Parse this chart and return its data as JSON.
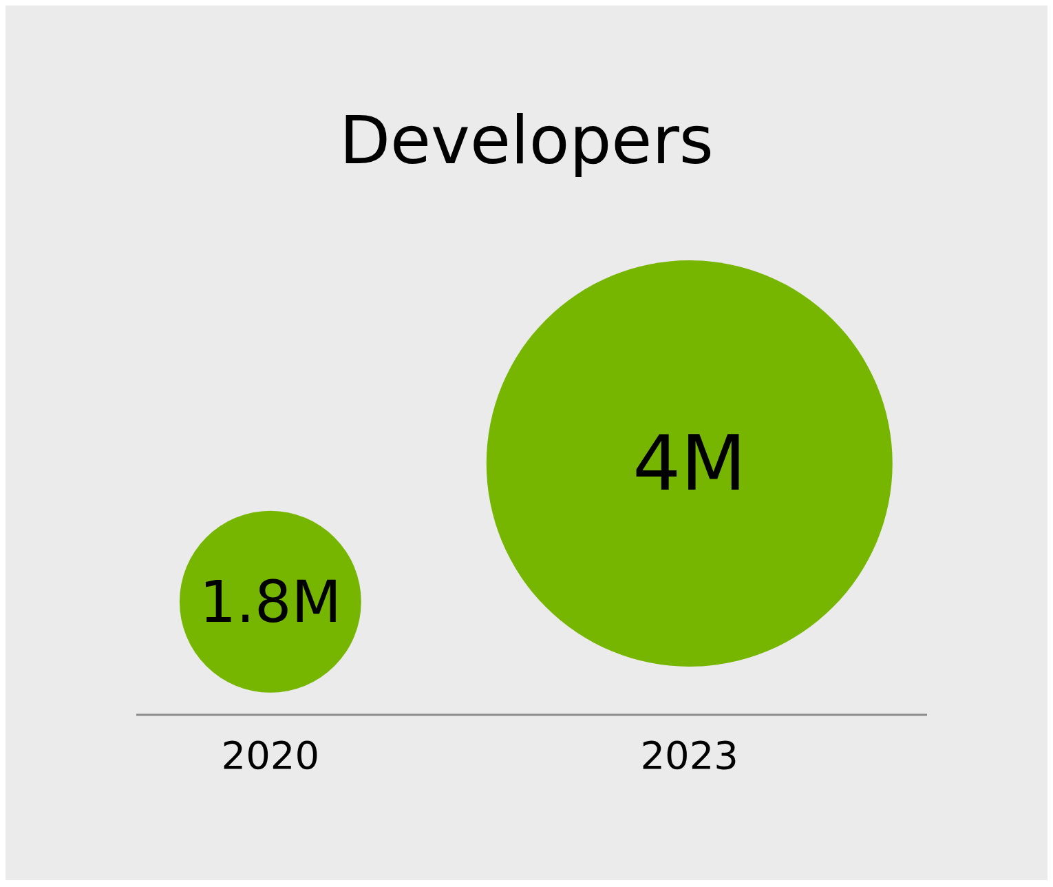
{
  "chart_data": {
    "type": "bubble",
    "title": "Developers",
    "categories": [
      "2020",
      "2023"
    ],
    "values": [
      1.8,
      4
    ],
    "sizes": [
      0.2,
      1
    ],
    "value_labels": [
      "1.8M",
      "4M"
    ],
    "color": "#76b500"
  }
}
